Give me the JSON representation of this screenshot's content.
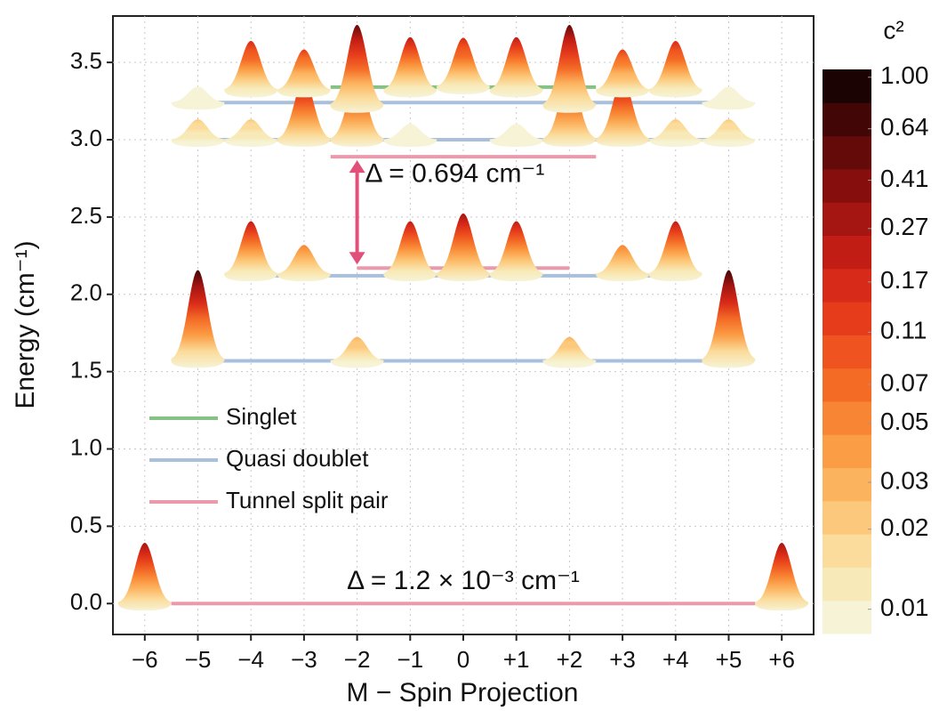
{
  "chart_data": {
    "type": "energy-levels",
    "x_label": "M − Spin Projection",
    "y_label": "Energy (cm⁻¹)",
    "xlim": [
      -6.6,
      6.6
    ],
    "ylim": [
      -0.2,
      3.8
    ],
    "grid": true,
    "xticks": [
      {
        "value": -6,
        "label": "−6"
      },
      {
        "value": -5,
        "label": "−5"
      },
      {
        "value": -4,
        "label": "−4"
      },
      {
        "value": -3,
        "label": "−3"
      },
      {
        "value": -2,
        "label": "−2"
      },
      {
        "value": -1,
        "label": "−1"
      },
      0,
      {
        "value": 1,
        "label": "+1"
      },
      {
        "value": 2,
        "label": "+2"
      },
      {
        "value": 3,
        "label": "+3"
      },
      {
        "value": 4,
        "label": "+4"
      },
      {
        "value": 5,
        "label": "+5"
      },
      {
        "value": 6,
        "label": "+6"
      }
    ],
    "yticks": [
      {
        "value": 0,
        "label": "0.0"
      },
      0.5,
      {
        "value": 1,
        "label": "1.0"
      },
      1.5,
      {
        "value": 2,
        "label": "2.0"
      },
      2.5,
      {
        "value": 3,
        "label": "3.0"
      },
      3.5
    ],
    "series": [
      {
        "name": "Singlet",
        "color": "#86c186",
        "values": [
          3.34
        ],
        "m_start": [
          -2.5
        ],
        "m_end": [
          2.5
        ]
      },
      {
        "name": "Quasi doublet",
        "color": "#a9c0dc",
        "values": [
          1.57,
          2.12,
          3.0,
          3.24
        ],
        "m_start": [
          -5,
          -4,
          -5,
          -5
        ],
        "m_end": [
          5,
          4,
          5,
          5
        ]
      },
      {
        "name": "Tunnel split pair",
        "color": "#eb9aab",
        "values": [
          0,
          2.17,
          2.89
        ],
        "m_start": [
          -5.5,
          -2,
          -2.5
        ],
        "m_end": [
          5.5,
          2,
          2.5
        ]
      }
    ],
    "peaks": {
      "x": [
        -6,
        6,
        -5,
        -2,
        2,
        5,
        -4,
        -3,
        -1,
        0,
        1,
        3,
        4,
        -5,
        -4,
        -3,
        -2,
        -1,
        1,
        2,
        3,
        4,
        5,
        -5,
        -4,
        -3,
        -2,
        -1,
        0,
        1,
        2,
        3,
        4,
        5
      ],
      "energy": [
        0,
        0,
        1.57,
        1.57,
        1.57,
        1.57,
        2.13,
        2.13,
        2.13,
        2.13,
        2.13,
        2.13,
        2.13,
        3.0,
        3.0,
        3.0,
        3.0,
        3.0,
        3.0,
        3.0,
        3.0,
        3.0,
        3.0,
        3.24,
        3.32,
        3.32,
        3.22,
        3.32,
        3.34,
        3.32,
        3.22,
        3.32,
        3.32,
        3.24
      ],
      "c2": [
        0.27,
        0.27,
        0.64,
        0.03,
        0.03,
        0.64,
        0.2,
        0.05,
        0.2,
        0.27,
        0.2,
        0.05,
        0.2,
        0.02,
        0.02,
        0.27,
        0.3,
        0.01,
        0.01,
        0.3,
        0.27,
        0.02,
        0.02,
        0.01,
        0.17,
        0.11,
        0.5,
        0.2,
        0.17,
        0.2,
        0.5,
        0.11,
        0.17,
        0.01
      ]
    },
    "annotations": [
      "Δ = 0.694 cm⁻¹",
      "Δ = 1.2 × 10⁻³ cm⁻¹"
    ],
    "colorbar": {
      "label": "c²",
      "clim": [
        0.0081,
        1.07
      ],
      "colors": [
        "#f6f3d6",
        "#f8eab8",
        "#fbdc9c",
        "#fcc97c",
        "#fcb35e",
        "#fb9d45",
        "#f88533",
        "#f46b26",
        "#ef531f",
        "#e63c1c",
        "#d82a18",
        "#c21d15",
        "#a51512",
        "#860e0d",
        "#640a09",
        "#420606",
        "#1c0303"
      ],
      "ticks": [
        0.01,
        0.02,
        0.03,
        0.05,
        0.07,
        0.11,
        0.17,
        0.27,
        0.41,
        0.64,
        {
          "value": 1,
          "label": "1.00"
        }
      ]
    }
  }
}
